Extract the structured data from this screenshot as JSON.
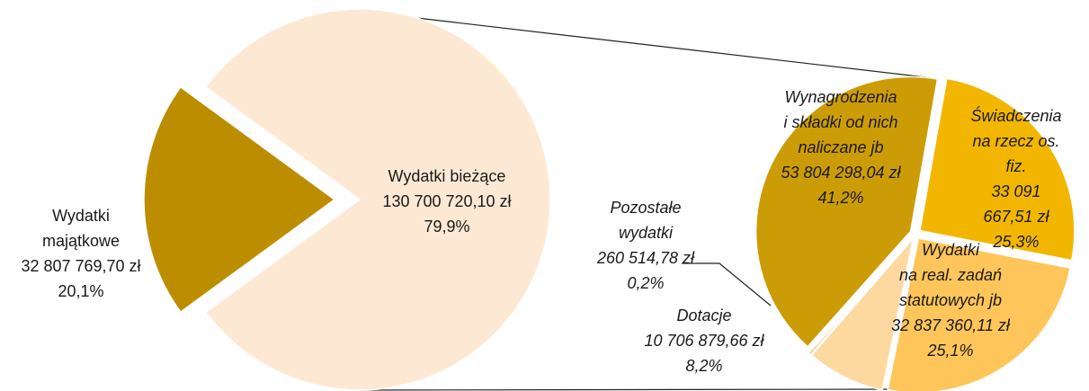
{
  "chart_data": [
    {
      "type": "pie",
      "categories": [
        "Wydatki\nmajątkowe",
        "Wydatki bieżące"
      ],
      "values": [
        20.1,
        79.9
      ],
      "value_labels": [
        "20,1%",
        "79,9%"
      ],
      "amounts": [
        32807769.7,
        130700720.1
      ],
      "amount_labels": [
        "32 807 769,70 zł",
        "130 700 720,10 zł"
      ],
      "colors": [
        "#bd8d00",
        "#fde9d3"
      ]
    },
    {
      "type": "pie",
      "categories": [
        "Wynagrodzenia\ni składki od nich\nnaliczane jb",
        "Świadczenia\nna rzecz os. fiz.",
        "Wydatki\nna real. zadań\nstatutowych jb",
        "Dotacje",
        "Pozostałe\nwydatki"
      ],
      "values": [
        41.2,
        25.3,
        25.1,
        8.2,
        0.2
      ],
      "value_labels": [
        "41,2%",
        "25,3%",
        "25,1%",
        "8,2%",
        "0,2%"
      ],
      "amounts": [
        53804298.04,
        33091667.51,
        32837360.11,
        10706879.66,
        260514.78
      ],
      "amount_labels": [
        "53 804 298,04 zł",
        "33 091 667,51 zł",
        "32 837 360,11 zł",
        "10 706 879,66 zł",
        "260 514,78 zł"
      ],
      "colors": [
        "#cc9c06",
        "#f2b600",
        "#fec55a",
        "#fdd9a0",
        "#c99a06"
      ]
    }
  ]
}
